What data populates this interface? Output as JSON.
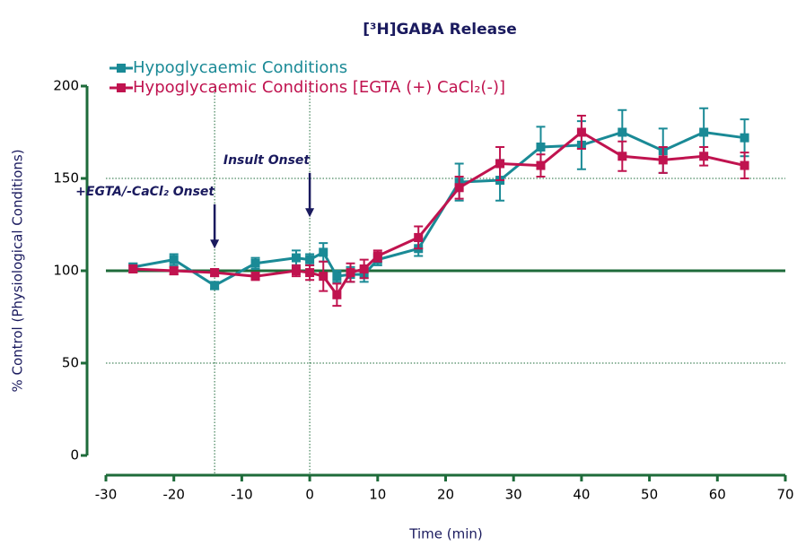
{
  "chart_data": {
    "type": "line",
    "title": "[³H]GABA Release",
    "x_label": "Time (min)",
    "y_label": "% Control (Physiological Conditions)",
    "x": [
      -26,
      -20,
      -14,
      -8,
      -2,
      0,
      2,
      4,
      6,
      8,
      10,
      16,
      22,
      28,
      34,
      40,
      46,
      52,
      58,
      64
    ],
    "series": [
      {
        "name": "Hypoglycaemic Conditions",
        "color": "#1a8a96",
        "values": [
          102,
          106,
          92,
          104,
          107,
          106,
          110,
          97,
          98,
          98,
          106,
          112,
          148,
          149,
          167,
          168,
          175,
          165,
          175,
          172
        ],
        "errors": [
          2,
          3,
          2,
          3,
          4,
          3,
          5,
          3,
          4,
          4,
          3,
          4,
          10,
          11,
          11,
          13,
          12,
          12,
          13,
          10
        ]
      },
      {
        "name": "Hypoglycaemic Conditions [EGTA (+) CaCl₂(-)]",
        "color": "#c0134f",
        "values": [
          101,
          100,
          99,
          97,
          100,
          99,
          97,
          87,
          99,
          101,
          108,
          118,
          145,
          158,
          157,
          175,
          162,
          160,
          162,
          157
        ],
        "errors": [
          2,
          2,
          2,
          2,
          3,
          4,
          8,
          6,
          5,
          5,
          3,
          6,
          6,
          9,
          6,
          9,
          8,
          7,
          5,
          7
        ]
      }
    ],
    "xlim": [
      -30,
      70
    ],
    "xticks": [
      -30,
      -20,
      -10,
      0,
      10,
      20,
      30,
      40,
      50,
      60,
      70
    ],
    "ylim": [
      0,
      200
    ],
    "yticks": [
      0,
      50,
      100,
      150,
      200
    ],
    "dotted_y": [
      50,
      150
    ],
    "baseline": 100,
    "annotations": [
      {
        "text": "+EGTA/-CaCl₂ Onset",
        "x": -14
      },
      {
        "text": "Insult Onset",
        "x": 0
      }
    ],
    "legend": "upper left"
  }
}
